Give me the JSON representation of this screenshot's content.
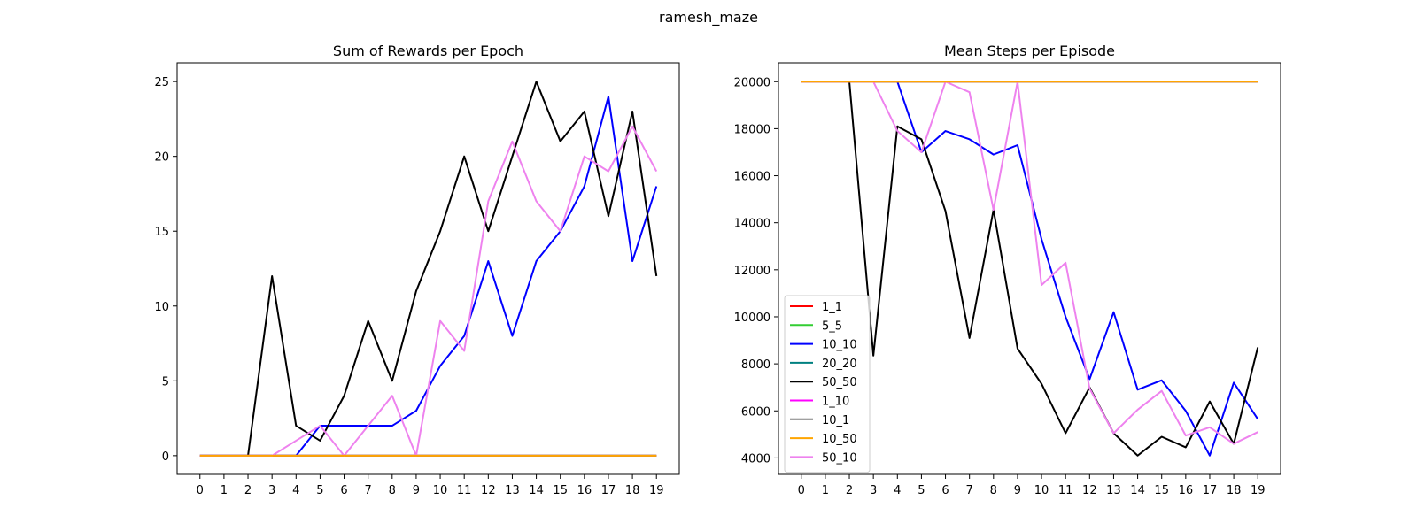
{
  "figure": {
    "suptitle": "ramesh_maze"
  },
  "colors": {
    "1_1": "#ff0000",
    "5_5": "#32cd32",
    "10_10": "#0000ff",
    "20_20": "#008080",
    "50_50": "#000000",
    "1_10": "#ff00ff",
    "10_1": "#808080",
    "10_50": "#ffa500",
    "50_10": "#ee82ee"
  },
  "chart_data": [
    {
      "type": "line",
      "title": "Sum of Rewards per Epoch",
      "xlabel": "",
      "ylabel": "",
      "x": [
        0,
        1,
        2,
        3,
        4,
        5,
        6,
        7,
        8,
        9,
        10,
        11,
        12,
        13,
        14,
        15,
        16,
        17,
        18,
        19
      ],
      "xlim": [
        -0.95,
        19.95
      ],
      "ylim": [
        -1.25,
        26.25
      ],
      "yticks": [
        0,
        5,
        10,
        15,
        20,
        25
      ],
      "grid": false,
      "series": [
        {
          "name": "1_1",
          "values": [
            0,
            0,
            0,
            0,
            0,
            0,
            0,
            0,
            0,
            0,
            0,
            0,
            0,
            0,
            0,
            0,
            0,
            0,
            0,
            0
          ]
        },
        {
          "name": "5_5",
          "values": [
            0,
            0,
            0,
            0,
            0,
            0,
            0,
            0,
            0,
            0,
            0,
            0,
            0,
            0,
            0,
            0,
            0,
            0,
            0,
            0
          ]
        },
        {
          "name": "10_10",
          "values": [
            0,
            0,
            0,
            0,
            0,
            2,
            2,
            2,
            2,
            3,
            6,
            8,
            13,
            8,
            13,
            15,
            18,
            24,
            13,
            18
          ]
        },
        {
          "name": "20_20",
          "values": [
            0,
            0,
            0,
            0,
            0,
            0,
            0,
            0,
            0,
            0,
            0,
            0,
            0,
            0,
            0,
            0,
            0,
            0,
            0,
            0
          ]
        },
        {
          "name": "50_50",
          "values": [
            0,
            0,
            0,
            12,
            2,
            1,
            4,
            9,
            5,
            11,
            15,
            20,
            15,
            20,
            25,
            21,
            23,
            16,
            23,
            12
          ]
        },
        {
          "name": "1_10",
          "values": [
            0,
            0,
            0,
            0,
            0,
            0,
            0,
            0,
            0,
            0,
            0,
            0,
            0,
            0,
            0,
            0,
            0,
            0,
            0,
            0
          ]
        },
        {
          "name": "10_1",
          "values": [
            0,
            0,
            0,
            0,
            0,
            0,
            0,
            0,
            0,
            0,
            0,
            0,
            0,
            0,
            0,
            0,
            0,
            0,
            0,
            0
          ]
        },
        {
          "name": "50_10",
          "values": [
            0,
            0,
            0,
            0,
            1,
            2,
            0,
            2,
            4,
            0,
            9,
            7,
            17,
            21,
            17,
            15,
            20,
            19,
            22,
            19
          ]
        },
        {
          "name": "10_50",
          "values": [
            0,
            0,
            0,
            0,
            0,
            0,
            0,
            0,
            0,
            0,
            0,
            0,
            0,
            0,
            0,
            0,
            0,
            0,
            0,
            0
          ]
        }
      ]
    },
    {
      "type": "line",
      "title": "Mean Steps per Episode",
      "xlabel": "",
      "ylabel": "",
      "x": [
        0,
        1,
        2,
        3,
        4,
        5,
        6,
        7,
        8,
        9,
        10,
        11,
        12,
        13,
        14,
        15,
        16,
        17,
        18,
        19
      ],
      "xlim": [
        -0.95,
        19.95
      ],
      "ylim": [
        3300,
        20800
      ],
      "yticks": [
        4000,
        6000,
        8000,
        10000,
        12000,
        14000,
        16000,
        18000,
        20000
      ],
      "grid": false,
      "legend": "center-left",
      "series": [
        {
          "name": "1_1",
          "values": [
            20000,
            20000,
            20000,
            20000,
            20000,
            20000,
            20000,
            20000,
            20000,
            20000,
            20000,
            20000,
            20000,
            20000,
            20000,
            20000,
            20000,
            20000,
            20000,
            20000
          ]
        },
        {
          "name": "5_5",
          "values": [
            20000,
            20000,
            20000,
            20000,
            20000,
            20000,
            20000,
            20000,
            20000,
            20000,
            20000,
            20000,
            20000,
            20000,
            20000,
            20000,
            20000,
            20000,
            20000,
            20000
          ]
        },
        {
          "name": "10_10",
          "values": [
            20000,
            20000,
            20000,
            20000,
            20000,
            17000,
            17900,
            17550,
            16900,
            17300,
            13300,
            10000,
            7350,
            10200,
            6900,
            7300,
            6000,
            4100,
            7200,
            5650
          ]
        },
        {
          "name": "20_20",
          "values": [
            20000,
            20000,
            20000,
            20000,
            20000,
            20000,
            20000,
            20000,
            20000,
            20000,
            20000,
            20000,
            20000,
            20000,
            20000,
            20000,
            20000,
            20000,
            20000,
            20000
          ]
        },
        {
          "name": "50_50",
          "values": [
            20000,
            20000,
            20000,
            8350,
            18100,
            17550,
            14500,
            9100,
            14550,
            8650,
            7150,
            5050,
            7000,
            5050,
            4100,
            4900,
            4450,
            6400,
            4600,
            8700
          ]
        },
        {
          "name": "1_10",
          "values": [
            20000,
            20000,
            20000,
            20000,
            20000,
            20000,
            20000,
            20000,
            20000,
            20000,
            20000,
            20000,
            20000,
            20000,
            20000,
            20000,
            20000,
            20000,
            20000,
            20000
          ]
        },
        {
          "name": "10_1",
          "values": [
            20000,
            20000,
            20000,
            20000,
            20000,
            20000,
            20000,
            20000,
            20000,
            20000,
            20000,
            20000,
            20000,
            20000,
            20000,
            20000,
            20000,
            20000,
            20000,
            20000
          ]
        },
        {
          "name": "50_10",
          "values": [
            20000,
            20000,
            20000,
            20000,
            17900,
            17000,
            20000,
            19550,
            14550,
            20000,
            11350,
            12300,
            6950,
            5050,
            6050,
            6850,
            4950,
            5300,
            4600,
            5100
          ]
        },
        {
          "name": "10_50",
          "values": [
            20000,
            20000,
            20000,
            20000,
            20000,
            20000,
            20000,
            20000,
            20000,
            20000,
            20000,
            20000,
            20000,
            20000,
            20000,
            20000,
            20000,
            20000,
            20000,
            20000
          ]
        }
      ]
    }
  ],
  "legend": {
    "entries": [
      "1_1",
      "5_5",
      "10_10",
      "20_20",
      "50_50",
      "1_10",
      "10_1",
      "10_50",
      "50_10"
    ]
  }
}
